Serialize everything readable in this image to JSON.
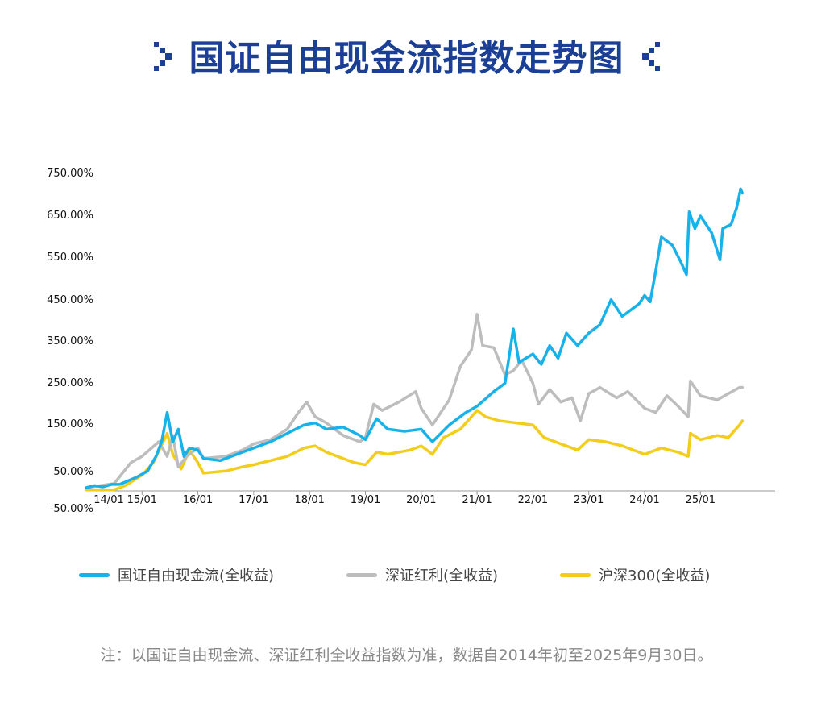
{
  "header": {
    "title": "国证自由现金流指数走势图",
    "left_decoration_icon": "chevron-right-dots-icon",
    "right_decoration_icon": "chevron-left-dots-icon",
    "title_color": "#1a3f95"
  },
  "legend": {
    "items": [
      {
        "label": "国证自由现金流(全收益)",
        "color": "#17b2ea"
      },
      {
        "label": "深证红利(全收益)",
        "color": "#bdbdbd"
      },
      {
        "label": "沪深300(全收益)",
        "color": "#f3cd1a"
      }
    ]
  },
  "footnote": "注：以国证自由现金流、深证红利全收益指数为准，数据自2014年初至2025年9月30日。",
  "chart_data": {
    "type": "line",
    "title": "国证自由现金流指数走势图",
    "xlabel": "",
    "ylabel": "",
    "y_tick_labels": [
      "750.00%",
      "650.00%",
      "550.00%",
      "450.00%",
      "350.00%",
      "250.00%",
      "150.00%",
      "50.00%",
      "-50.00%"
    ],
    "x_tick_labels": [
      "14/01",
      "15/01",
      "16/01",
      "17/01",
      "18/01",
      "19/01",
      "20/01",
      "21/01",
      "22/01",
      "23/01",
      "24/01",
      "25/01"
    ],
    "ylim": [
      -50,
      750
    ],
    "xlim": [
      2014.0,
      2025.75
    ],
    "grid": false,
    "legend_position": "bottom",
    "series": [
      {
        "name": "国证自由现金流(全收益)",
        "color": "#17b2ea",
        "x": [
          2014.0,
          2014.15,
          2014.3,
          2014.45,
          2014.6,
          2014.9,
          2015.1,
          2015.25,
          2015.35,
          2015.45,
          2015.55,
          2015.65,
          2015.75,
          2015.85,
          2016.0,
          2016.1,
          2016.4,
          2016.7,
          2017.0,
          2017.3,
          2017.6,
          2017.9,
          2018.1,
          2018.3,
          2018.6,
          2018.9,
          2019.0,
          2019.2,
          2019.4,
          2019.7,
          2020.0,
          2020.2,
          2020.5,
          2020.8,
          2021.0,
          2021.3,
          2021.5,
          2021.65,
          2021.75,
          2022.0,
          2022.15,
          2022.3,
          2022.45,
          2022.6,
          2022.8,
          2023.0,
          2023.2,
          2023.4,
          2023.6,
          2023.9,
          2024.0,
          2024.1,
          2024.2,
          2024.3,
          2024.5,
          2024.65,
          2024.75,
          2024.8,
          2024.9,
          2025.0,
          2025.2,
          2025.35,
          2025.4,
          2025.55,
          2025.65,
          2025.72,
          2025.75
        ],
        "values": [
          0,
          5,
          2,
          8,
          8,
          25,
          40,
          75,
          110,
          180,
          110,
          140,
          75,
          95,
          90,
          70,
          65,
          80,
          95,
          110,
          130,
          150,
          155,
          140,
          145,
          125,
          115,
          165,
          140,
          135,
          140,
          110,
          150,
          180,
          195,
          230,
          250,
          380,
          300,
          320,
          295,
          340,
          310,
          370,
          340,
          370,
          390,
          450,
          410,
          440,
          460,
          445,
          520,
          600,
          580,
          540,
          510,
          660,
          620,
          650,
          610,
          545,
          620,
          630,
          670,
          715,
          705
        ]
      },
      {
        "name": "深证红利(全收益)",
        "color": "#bdbdbd",
        "x": [
          2014.0,
          2014.5,
          2014.8,
          2015.0,
          2015.3,
          2015.45,
          2015.55,
          2015.65,
          2015.8,
          2016.0,
          2016.1,
          2016.5,
          2016.8,
          2017.0,
          2017.3,
          2017.6,
          2017.8,
          2017.95,
          2018.1,
          2018.3,
          2018.6,
          2018.9,
          2019.0,
          2019.15,
          2019.3,
          2019.6,
          2019.9,
          2020.0,
          2020.2,
          2020.5,
          2020.7,
          2020.9,
          2021.0,
          2021.1,
          2021.3,
          2021.5,
          2021.65,
          2021.8,
          2022.0,
          2022.1,
          2022.3,
          2022.5,
          2022.7,
          2022.85,
          2023.0,
          2023.2,
          2023.5,
          2023.7,
          2024.0,
          2024.2,
          2024.4,
          2024.6,
          2024.78,
          2024.82,
          2025.0,
          2025.3,
          2025.5,
          2025.7,
          2025.75
        ],
        "values": [
          0,
          10,
          60,
          75,
          110,
          75,
          125,
          50,
          75,
          95,
          70,
          75,
          90,
          105,
          115,
          140,
          180,
          205,
          170,
          155,
          125,
          110,
          120,
          200,
          185,
          205,
          230,
          190,
          150,
          210,
          290,
          330,
          415,
          340,
          335,
          270,
          280,
          305,
          250,
          200,
          235,
          205,
          215,
          160,
          225,
          240,
          215,
          230,
          190,
          180,
          220,
          195,
          170,
          255,
          220,
          210,
          225,
          240,
          240
        ]
      },
      {
        "name": "沪深300(全收益)",
        "color": "#f3cd1a",
        "x": [
          2014.0,
          2014.5,
          2014.7,
          2015.0,
          2015.2,
          2015.45,
          2015.55,
          2015.7,
          2015.85,
          2016.0,
          2016.1,
          2016.5,
          2016.8,
          2017.0,
          2017.3,
          2017.6,
          2017.9,
          2018.1,
          2018.3,
          2018.5,
          2018.8,
          2019.0,
          2019.2,
          2019.4,
          2019.8,
          2020.0,
          2020.2,
          2020.4,
          2020.7,
          2021.0,
          2021.15,
          2021.4,
          2021.7,
          2022.0,
          2022.2,
          2022.5,
          2022.8,
          2023.0,
          2023.3,
          2023.6,
          2024.0,
          2024.3,
          2024.6,
          2024.78,
          2024.82,
          2025.0,
          2025.3,
          2025.5,
          2025.7,
          2025.75
        ],
        "values": [
          -5,
          -5,
          5,
          30,
          60,
          130,
          80,
          45,
          90,
          60,
          35,
          40,
          50,
          55,
          65,
          75,
          95,
          100,
          85,
          75,
          60,
          55,
          85,
          80,
          90,
          100,
          80,
          120,
          140,
          185,
          170,
          160,
          155,
          150,
          120,
          105,
          90,
          115,
          110,
          100,
          80,
          95,
          85,
          75,
          130,
          115,
          125,
          120,
          150,
          160
        ]
      }
    ]
  }
}
